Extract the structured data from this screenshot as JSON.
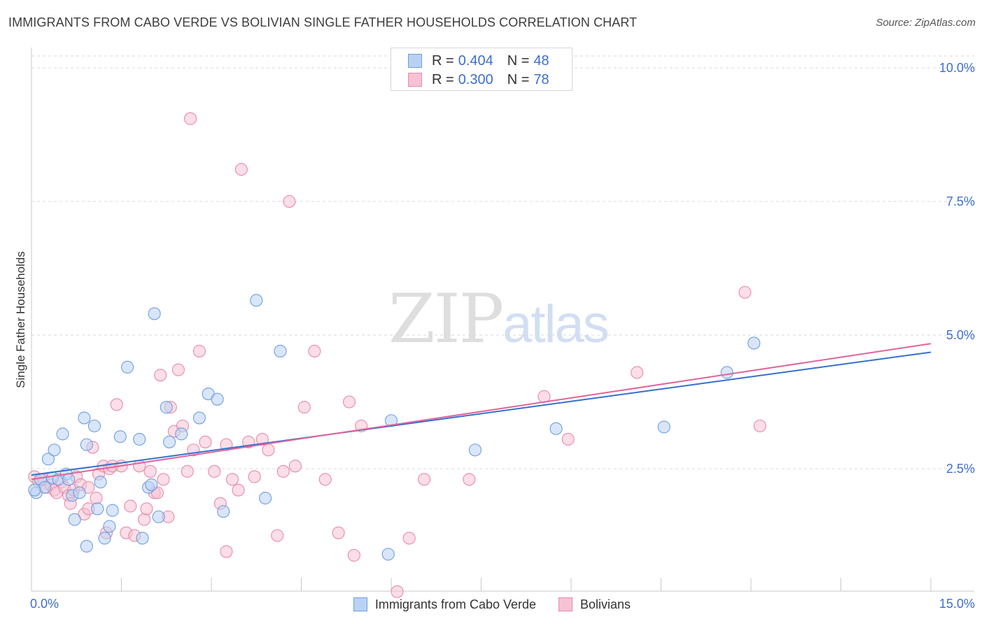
{
  "title": "IMMIGRANTS FROM CABO VERDE VS BOLIVIAN SINGLE FATHER HOUSEHOLDS CORRELATION CHART",
  "source": "Source: ZipAtlas.com",
  "watermark": {
    "zip": "ZIP",
    "atlas": "atlas"
  },
  "legend_top": {
    "rows": [
      {
        "r_label": "R =",
        "r_value": "0.404",
        "n_label": "N =",
        "n_value": "48"
      },
      {
        "r_label": "R =",
        "r_value": "0.300",
        "n_label": "N =",
        "n_value": "78"
      }
    ]
  },
  "legend_bottom": {
    "items": [
      {
        "label": "Immigrants from Cabo Verde"
      },
      {
        "label": "Bolivians"
      }
    ]
  },
  "colors": {
    "blue_fill": "#b9d2f4",
    "blue_stroke": "#6f9ee0",
    "blue_line": "#3470d0",
    "pink_fill": "#f7c2d3",
    "pink_stroke": "#e88aa9",
    "pink_line": "#e0649a",
    "tick_text": "#3d6fcf",
    "grid": "#dadada"
  },
  "chart_data": {
    "type": "scatter",
    "title": "IMMIGRANTS FROM CABO VERDE VS BOLIVIAN SINGLE FATHER HOUSEHOLDS CORRELATION CHART",
    "xlabel": "",
    "ylabel": "Single Father Households",
    "xlim": [
      0,
      15
    ],
    "ylim": [
      0,
      10.4
    ],
    "x_tick_labels": [
      {
        "value": 0,
        "label": "0.0%"
      },
      {
        "value": 15,
        "label": "15.0%"
      }
    ],
    "y_ticks": [
      {
        "value": 2.5,
        "label": "2.5%"
      },
      {
        "value": 5.0,
        "label": "5.0%"
      },
      {
        "value": 7.5,
        "label": "7.5%"
      },
      {
        "value": 10.0,
        "label": "10.0%"
      }
    ],
    "x_minor_ticks": [
      1.5,
      3.0,
      4.5,
      6.0,
      7.5,
      9.0,
      10.5,
      12.0,
      13.5,
      15.0
    ],
    "grid": true,
    "legend_position": "top-center",
    "series": [
      {
        "name": "Immigrants from Cabo Verde",
        "r": 0.404,
        "n": 48,
        "trend": [
          [
            0,
            2.38
          ],
          [
            15,
            4.68
          ]
        ],
        "points": [
          [
            0.08,
            2.05
          ],
          [
            0.15,
            2.3
          ],
          [
            0.22,
            2.15
          ],
          [
            0.28,
            2.68
          ],
          [
            0.35,
            2.33
          ],
          [
            0.38,
            2.85
          ],
          [
            0.45,
            2.3
          ],
          [
            0.52,
            3.15
          ],
          [
            0.58,
            2.4
          ],
          [
            0.62,
            2.3
          ],
          [
            0.68,
            2.0
          ],
          [
            0.72,
            1.55
          ],
          [
            0.8,
            2.05
          ],
          [
            0.88,
            3.45
          ],
          [
            0.92,
            2.95
          ],
          [
            1.05,
            3.3
          ],
          [
            1.1,
            1.75
          ],
          [
            1.15,
            2.25
          ],
          [
            1.22,
            1.2
          ],
          [
            1.3,
            1.42
          ],
          [
            1.35,
            1.72
          ],
          [
            1.48,
            3.1
          ],
          [
            1.6,
            4.4
          ],
          [
            1.8,
            3.05
          ],
          [
            1.85,
            1.2
          ],
          [
            1.95,
            2.15
          ],
          [
            2.0,
            2.2
          ],
          [
            2.05,
            5.4
          ],
          [
            2.12,
            1.6
          ],
          [
            2.25,
            3.65
          ],
          [
            2.3,
            3.0
          ],
          [
            2.5,
            3.15
          ],
          [
            2.8,
            3.45
          ],
          [
            2.95,
            3.9
          ],
          [
            3.1,
            3.8
          ],
          [
            3.2,
            1.7
          ],
          [
            3.75,
            5.65
          ],
          [
            3.9,
            1.95
          ],
          [
            4.15,
            4.7
          ],
          [
            6.0,
            3.4
          ],
          [
            5.95,
            0.9
          ],
          [
            7.4,
            2.85
          ],
          [
            8.75,
            3.25
          ],
          [
            10.55,
            3.28
          ],
          [
            11.6,
            4.3
          ],
          [
            12.05,
            4.85
          ],
          [
            0.05,
            2.1
          ],
          [
            0.92,
            1.05
          ]
        ]
      },
      {
        "name": "Bolivians",
        "r": 0.3,
        "n": 78,
        "trend": [
          [
            0,
            2.3
          ],
          [
            15,
            4.84
          ]
        ],
        "points": [
          [
            0.05,
            2.35
          ],
          [
            0.12,
            2.25
          ],
          [
            0.2,
            2.3
          ],
          [
            0.25,
            2.15
          ],
          [
            0.32,
            2.2
          ],
          [
            0.38,
            2.1
          ],
          [
            0.42,
            2.05
          ],
          [
            0.5,
            2.25
          ],
          [
            0.55,
            2.15
          ],
          [
            0.62,
            2.0
          ],
          [
            0.65,
            1.85
          ],
          [
            0.7,
            2.1
          ],
          [
            0.75,
            2.35
          ],
          [
            0.82,
            2.2
          ],
          [
            0.88,
            1.65
          ],
          [
            0.95,
            2.15
          ],
          [
            1.02,
            2.9
          ],
          [
            1.08,
            1.95
          ],
          [
            1.12,
            2.4
          ],
          [
            1.2,
            2.55
          ],
          [
            1.3,
            2.5
          ],
          [
            1.35,
            2.55
          ],
          [
            1.42,
            3.7
          ],
          [
            1.5,
            2.55
          ],
          [
            1.58,
            1.3
          ],
          [
            1.65,
            1.8
          ],
          [
            1.72,
            1.25
          ],
          [
            1.8,
            2.55
          ],
          [
            1.88,
            1.55
          ],
          [
            1.92,
            1.75
          ],
          [
            1.98,
            2.45
          ],
          [
            2.05,
            2.05
          ],
          [
            2.1,
            2.05
          ],
          [
            2.15,
            4.25
          ],
          [
            2.2,
            2.3
          ],
          [
            2.28,
            1.6
          ],
          [
            2.32,
            3.65
          ],
          [
            2.38,
            3.2
          ],
          [
            2.45,
            4.35
          ],
          [
            2.52,
            3.3
          ],
          [
            2.6,
            2.45
          ],
          [
            2.7,
            2.85
          ],
          [
            2.8,
            4.7
          ],
          [
            2.9,
            3.0
          ],
          [
            2.65,
            9.05
          ],
          [
            3.05,
            2.45
          ],
          [
            3.15,
            1.85
          ],
          [
            3.25,
            2.95
          ],
          [
            3.35,
            2.3
          ],
          [
            3.45,
            2.1
          ],
          [
            3.5,
            8.1
          ],
          [
            3.62,
            3.0
          ],
          [
            3.72,
            2.35
          ],
          [
            3.85,
            3.05
          ],
          [
            3.95,
            2.85
          ],
          [
            4.1,
            1.25
          ],
          [
            4.2,
            2.45
          ],
          [
            4.3,
            7.5
          ],
          [
            4.4,
            2.55
          ],
          [
            4.55,
            3.65
          ],
          [
            4.72,
            4.7
          ],
          [
            4.9,
            2.3
          ],
          [
            5.12,
            1.3
          ],
          [
            5.3,
            3.75
          ],
          [
            5.38,
            0.88
          ],
          [
            5.5,
            3.3
          ],
          [
            6.3,
            1.2
          ],
          [
            6.55,
            2.3
          ],
          [
            7.3,
            2.3
          ],
          [
            8.55,
            3.85
          ],
          [
            8.95,
            3.05
          ],
          [
            10.1,
            4.3
          ],
          [
            11.9,
            5.8
          ],
          [
            12.15,
            3.3
          ],
          [
            0.95,
            1.75
          ],
          [
            1.25,
            1.3
          ],
          [
            3.25,
            0.95
          ],
          [
            6.1,
            0.2
          ]
        ]
      }
    ]
  }
}
